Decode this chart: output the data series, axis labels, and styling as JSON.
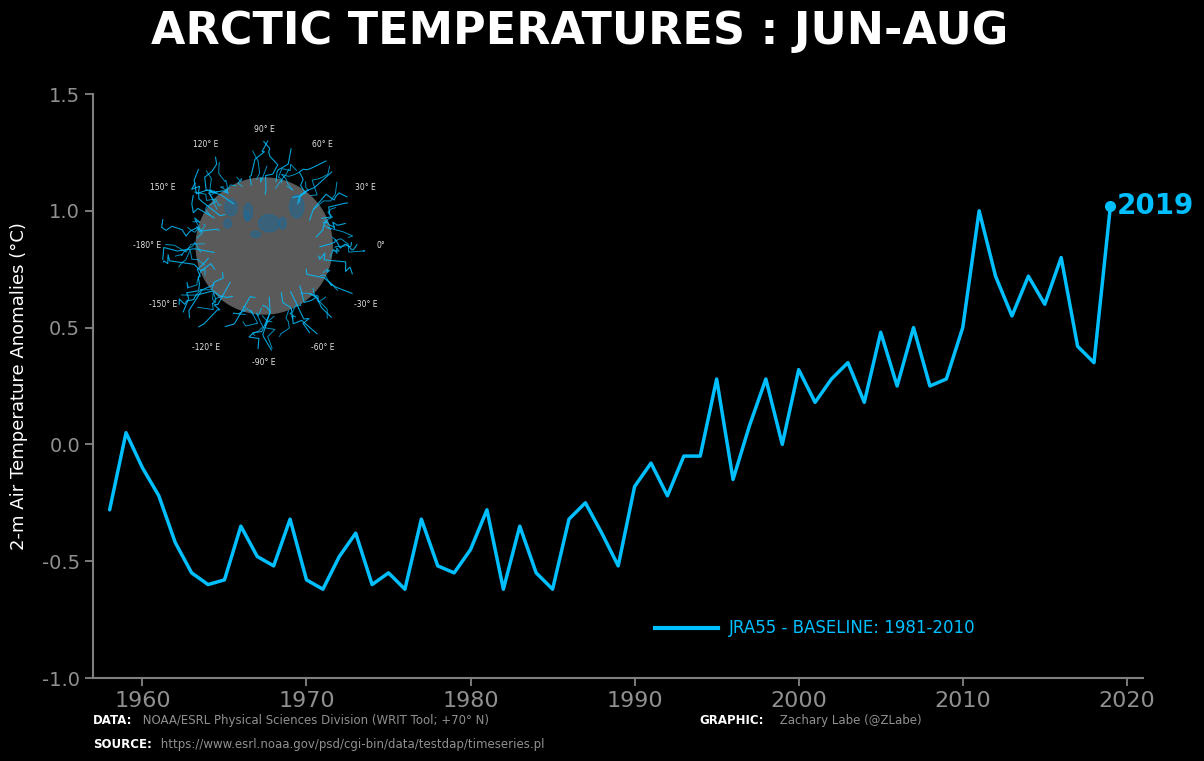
{
  "title": "ARCTIC TEMPERATURES : JUN-AUG",
  "ylabel": "2-m Air Temperature Anomalies (°C)",
  "bg_color": "#000000",
  "line_color": "#00BFFF",
  "text_color": "#ffffff",
  "axis_color": "#808080",
  "tick_color": "#909090",
  "xlim": [
    1957,
    2021
  ],
  "ylim": [
    -1.0,
    1.5
  ],
  "yticks": [
    -1.0,
    -0.5,
    0.0,
    0.5,
    1.0,
    1.5
  ],
  "xticks": [
    1960,
    1970,
    1980,
    1990,
    2000,
    2010,
    2020
  ],
  "legend_label": "JRA55 - BASELINE: 1981-2010",
  "annotation_year": "2019",
  "years": [
    1958,
    1959,
    1960,
    1961,
    1962,
    1963,
    1964,
    1965,
    1966,
    1967,
    1968,
    1969,
    1970,
    1971,
    1972,
    1973,
    1974,
    1975,
    1976,
    1977,
    1978,
    1979,
    1980,
    1981,
    1982,
    1983,
    1984,
    1985,
    1986,
    1987,
    1988,
    1989,
    1990,
    1991,
    1992,
    1993,
    1994,
    1995,
    1996,
    1997,
    1998,
    1999,
    2000,
    2001,
    2002,
    2003,
    2004,
    2005,
    2006,
    2007,
    2008,
    2009,
    2010,
    2011,
    2012,
    2013,
    2014,
    2015,
    2016,
    2017,
    2018,
    2019
  ],
  "values": [
    -0.28,
    0.05,
    -0.1,
    -0.22,
    -0.42,
    -0.55,
    -0.6,
    -0.58,
    -0.35,
    -0.48,
    -0.52,
    -0.32,
    -0.58,
    -0.62,
    -0.48,
    -0.38,
    -0.6,
    -0.55,
    -0.62,
    -0.32,
    -0.52,
    -0.55,
    -0.45,
    -0.28,
    -0.62,
    -0.35,
    -0.55,
    -0.62,
    -0.32,
    -0.25,
    -0.38,
    -0.52,
    -0.18,
    -0.08,
    -0.22,
    -0.05,
    -0.05,
    0.28,
    -0.15,
    0.08,
    0.28,
    0.0,
    0.32,
    0.18,
    0.28,
    0.35,
    0.18,
    0.48,
    0.25,
    0.5,
    0.25,
    0.28,
    0.5,
    1.0,
    0.72,
    0.55,
    0.72,
    0.6,
    0.8,
    0.42,
    0.35,
    1.02
  ],
  "inset_circle_color": "#666666",
  "inset_outline_color": "#00BFFF",
  "compass_labels": [
    "90° E",
    "60° E",
    "30° E",
    "0°",
    "-30° E",
    "-60° E",
    "-90° E",
    "-120° E",
    "-150° E",
    "-180° E",
    "150° E",
    "120° E"
  ],
  "compass_angles": [
    90,
    60,
    30,
    0,
    -30,
    -60,
    -90,
    -120,
    -150,
    180,
    150,
    120
  ],
  "data_bold": "DATA:",
  "data_normal": " NOAA/ESRL Physical Sciences Division (WRIT Tool; +70° N)",
  "source_bold": "SOURCE:",
  "source_normal": " https://www.esrl.noaa.gov/psd/cgi-bin/data/testdap/timeseries.pl",
  "graphic_bold": "GRAPHIC:",
  "graphic_normal": " Zachary Labe (@ZLabe)"
}
